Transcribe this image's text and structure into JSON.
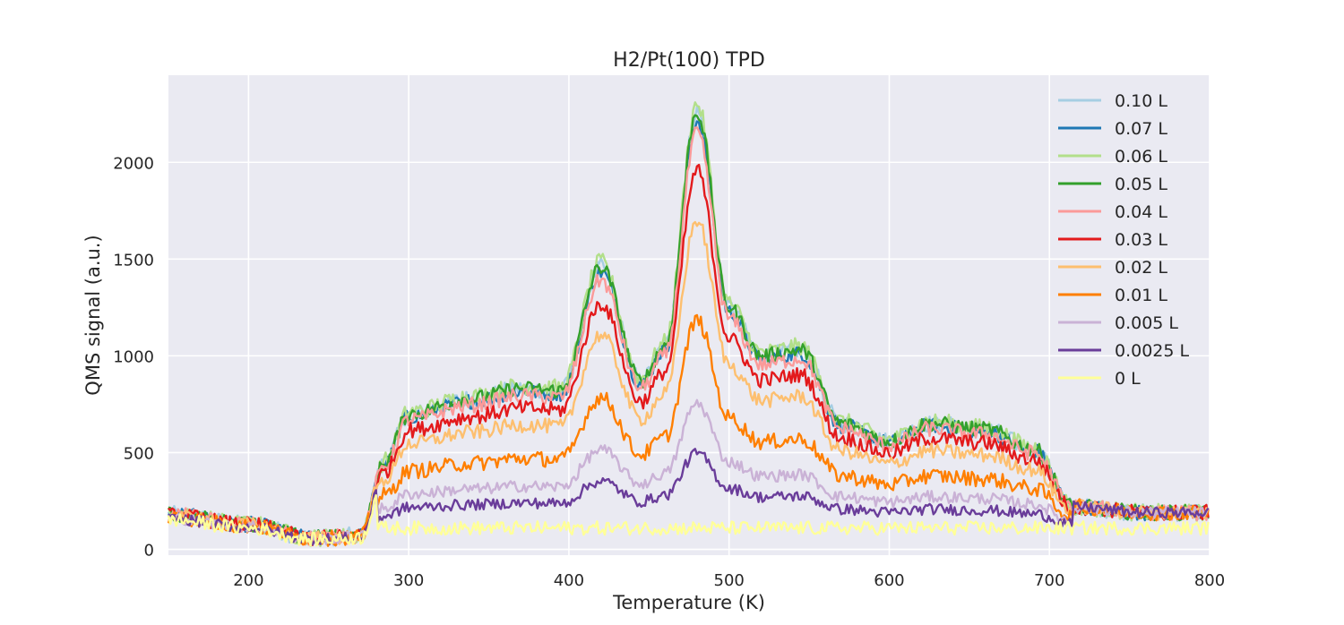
{
  "chart_data": {
    "type": "line",
    "title": "H2/Pt(100) TPD",
    "xlabel": "Temperature (K)",
    "ylabel": "QMS signal (a.u.)",
    "xlim": [
      150,
      800
    ],
    "ylim": [
      -30,
      2450
    ],
    "xticks": [
      200,
      300,
      400,
      500,
      600,
      700,
      800
    ],
    "yticks": [
      0,
      500,
      1000,
      1500,
      2000
    ],
    "grid": true,
    "legend_position": "top-right",
    "background": "#eaeaf2",
    "series": [
      {
        "name": "0.10 L",
        "color": "#a6cee3",
        "scale": 1.0,
        "noise": 45
      },
      {
        "name": "0.07 L",
        "color": "#1f78b4",
        "scale": 0.98,
        "noise": 40
      },
      {
        "name": "0.06 L",
        "color": "#b2df8a",
        "scale": 1.02,
        "noise": 45
      },
      {
        "name": "0.05 L",
        "color": "#33a02c",
        "scale": 1.0,
        "noise": 40
      },
      {
        "name": "0.04 L",
        "color": "#fb9a99",
        "scale": 0.95,
        "noise": 40
      },
      {
        "name": "0.03 L",
        "color": "#e31a1c",
        "scale": 0.86,
        "noise": 40
      },
      {
        "name": "0.02 L",
        "color": "#fdbf6f",
        "scale": 0.74,
        "noise": 38
      },
      {
        "name": "0.01 L",
        "color": "#ff7f00",
        "scale": 0.5,
        "noise": 40
      },
      {
        "name": "0.005 L",
        "color": "#cab2d6",
        "scale": 0.3,
        "noise": 30
      },
      {
        "name": "0.0025 L",
        "color": "#6a3d9a",
        "scale": 0.18,
        "noise": 28
      },
      {
        "name": "0 L",
        "color": "#ffff99",
        "scale": 0.0,
        "noise": 35
      }
    ],
    "peaks_full_coverage": {
      "x": [
        150,
        200,
        240,
        270,
        285,
        300,
        340,
        370,
        395,
        420,
        445,
        460,
        480,
        500,
        520,
        545,
        570,
        600,
        625,
        660,
        690,
        715,
        760,
        800
      ],
      "y": [
        180,
        130,
        60,
        70,
        450,
        700,
        780,
        830,
        820,
        1460,
        870,
        1050,
        2260,
        1250,
        1000,
        1030,
        650,
        560,
        650,
        620,
        520,
        220,
        190,
        190
      ]
    },
    "baseline": {
      "x": [
        150,
        800
      ],
      "y": [
        110,
        110
      ]
    }
  }
}
